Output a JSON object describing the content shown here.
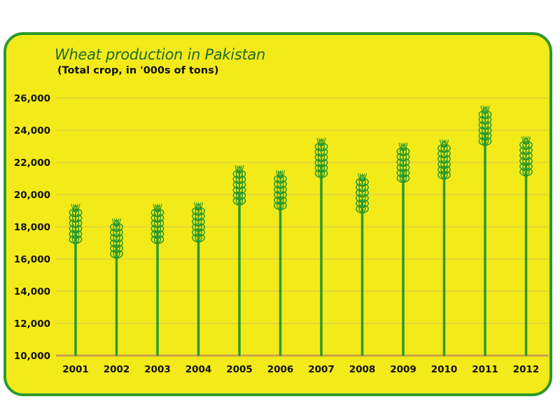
{
  "chart_data": {
    "type": "bar",
    "title": "Wheat production in Pakistan",
    "subtitle": "(Total crop, in '000s of tons)",
    "xlabel": "",
    "ylabel": "",
    "categories": [
      "2001",
      "2002",
      "2003",
      "2004",
      "2005",
      "2006",
      "2007",
      "2008",
      "2009",
      "2010",
      "2011",
      "2012"
    ],
    "values": [
      18000,
      17100,
      18000,
      18100,
      20400,
      20100,
      22100,
      19900,
      21800,
      22000,
      24100,
      22200
    ],
    "ylim": [
      10000,
      26000
    ],
    "yticks": [
      10000,
      12000,
      14000,
      16000,
      18000,
      20000,
      22000,
      24000,
      26000
    ],
    "ytick_labels": [
      "10,000",
      "12,000",
      "14,000",
      "16,000",
      "18,000",
      "20,000",
      "22,000",
      "24,000",
      "26,000"
    ],
    "grid": true,
    "legend": "none",
    "colors": {
      "panel_background": "#f3ea1a",
      "panel_border": "#2b9a2a",
      "grid": "#d9cf47",
      "baseline": "#c9a34a",
      "stalk": "#2b9a2a",
      "grain": "#2b9a2a",
      "title": "#1f6b2a"
    }
  }
}
